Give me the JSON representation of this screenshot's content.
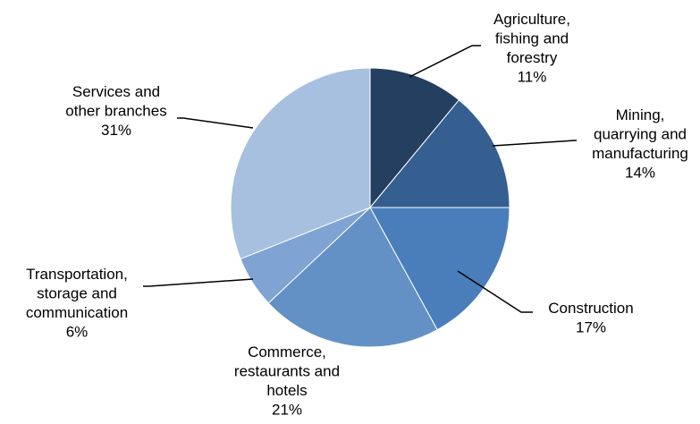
{
  "chart_data": {
    "type": "pie",
    "title": "",
    "slices": [
      {
        "label_lines": [
          "Agriculture,",
          "fishing and",
          "forestry"
        ],
        "pct_label": "11%",
        "value": 11,
        "color": "#243f60"
      },
      {
        "label_lines": [
          "Mining,",
          "quarrying and",
          "manufacturing"
        ],
        "pct_label": "14%",
        "value": 14,
        "color": "#365f91"
      },
      {
        "label_lines": [
          "Construction"
        ],
        "pct_label": "17%",
        "value": 17,
        "color": "#4a7ebb"
      },
      {
        "label_lines": [
          "Commerce,",
          "restaurants and",
          "hotels"
        ],
        "pct_label": "21%",
        "value": 21,
        "color": "#6391c6"
      },
      {
        "label_lines": [
          "Transportation,",
          "storage and",
          "communication"
        ],
        "pct_label": "6%",
        "value": 6,
        "color": "#7fa3d2"
      },
      {
        "label_lines": [
          "Services and",
          "other branches"
        ],
        "pct_label": "31%",
        "value": 31,
        "color": "#a8c0e0"
      }
    ]
  }
}
